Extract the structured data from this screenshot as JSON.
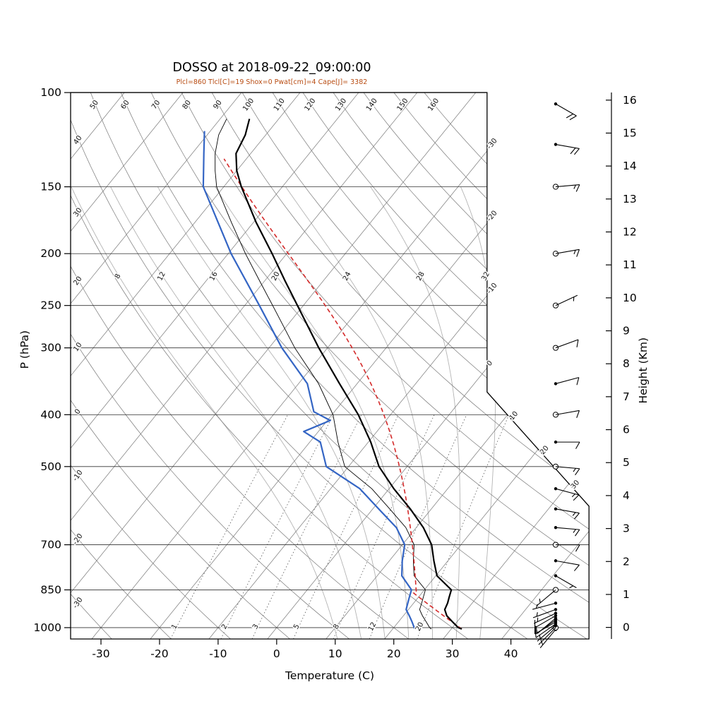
{
  "title": "DOSSO at 2018-09-22_09:00:00",
  "params_line": "Plcl=860 Tlcl[C]=19 Shox=0 Pwat[cm]=4 Cape[J]= 3382",
  "axes": {
    "xlabel": "Temperature (C)",
    "ylabel": "P (hPa)",
    "y2label": "Height (Km)",
    "pressure_ticks": [
      100,
      150,
      200,
      250,
      300,
      400,
      500,
      700,
      850,
      1000
    ],
    "temp_ticks": [
      -30,
      -20,
      -10,
      0,
      10,
      20,
      30,
      40
    ],
    "height_ticks_km": [
      0,
      1,
      2,
      3,
      4,
      5,
      6,
      7,
      8,
      9,
      10,
      11,
      12,
      13,
      14,
      15,
      16
    ]
  },
  "background": {
    "isotherm_start": -110,
    "isotherm_end": 40,
    "isotherm_step": 10,
    "isotherm_labels_right_edge": [
      -30,
      -20,
      -10,
      0
    ],
    "isotherm_labels_bevel": [
      10,
      20,
      30
    ],
    "dry_adiabat_start": -30,
    "dry_adiabat_end": 160,
    "dry_adiabat_step": 10,
    "dry_adiabat_labels_left_edge": [
      -30,
      -20,
      -10,
      0,
      10,
      20,
      30,
      40
    ],
    "dry_adiabat_labels_top_edge": [
      50,
      60,
      70,
      80,
      90,
      100,
      110,
      120,
      130,
      140,
      150,
      160
    ],
    "moist_adiabats": [
      8,
      12,
      16,
      20,
      24,
      28,
      32
    ],
    "mixing_ratio_g_kg": [
      1,
      2,
      3,
      5,
      8,
      12,
      20
    ]
  },
  "chart_data": {
    "type": "skew-t log-p sounding",
    "station": "DOSSO",
    "datetime": "2018-09-22_09:00:00",
    "indices": {
      "Plcl_hPa": 860,
      "Tlcl_C": 19,
      "Shox": 0,
      "Pwat_cm": 4,
      "Cape_J": 3382
    },
    "temperature_profile_p_T": [
      [
        1006,
        31.8
      ],
      [
        1000,
        31.0
      ],
      [
        975,
        29.2
      ],
      [
        950,
        27.4
      ],
      [
        925,
        26.2
      ],
      [
        900,
        25.8
      ],
      [
        875,
        25.2
      ],
      [
        850,
        24.6
      ],
      [
        800,
        20.2
      ],
      [
        750,
        17.6
      ],
      [
        700,
        15.0
      ],
      [
        650,
        11.2
      ],
      [
        600,
        6.4
      ],
      [
        550,
        0.8
      ],
      [
        500,
        -4.8
      ],
      [
        450,
        -9.6
      ],
      [
        400,
        -15.5
      ],
      [
        350,
        -23.0
      ],
      [
        300,
        -31.5
      ],
      [
        250,
        -41.0
      ],
      [
        225,
        -46.5
      ],
      [
        200,
        -52.5
      ],
      [
        175,
        -59.5
      ],
      [
        150,
        -67.0
      ],
      [
        140,
        -70.0
      ],
      [
        130,
        -72.5
      ],
      [
        120,
        -73.5
      ],
      [
        112,
        -75.0
      ]
    ],
    "dewpoint_profile_p_T": [
      [
        1006,
        23.8
      ],
      [
        1000,
        23.5
      ],
      [
        975,
        22.3
      ],
      [
        950,
        21.0
      ],
      [
        925,
        19.6
      ],
      [
        900,
        19.0
      ],
      [
        875,
        18.4
      ],
      [
        850,
        17.8
      ],
      [
        800,
        14.2
      ],
      [
        750,
        12.2
      ],
      [
        700,
        10.4
      ],
      [
        650,
        6.6
      ],
      [
        600,
        1.0
      ],
      [
        550,
        -5.0
      ],
      [
        500,
        -13.8
      ],
      [
        450,
        -18.2
      ],
      [
        430,
        -22.5
      ],
      [
        410,
        -19.5
      ],
      [
        395,
        -23.5
      ],
      [
        350,
        -28.5
      ],
      [
        300,
        -37.8
      ],
      [
        250,
        -47.5
      ],
      [
        200,
        -59.5
      ],
      [
        175,
        -66.0
      ],
      [
        150,
        -73.5
      ],
      [
        130,
        -78.0
      ],
      [
        118,
        -81.0
      ]
    ],
    "parcel": {
      "surface_p": 1006,
      "surface_T": 31.8,
      "surface_Td": 23.8,
      "lcl_p": 860,
      "lcl_T": 19,
      "top_p": 133
    },
    "wind_profile_p_kt_dir": [
      [
        1008,
        3,
        220
      ],
      [
        1000,
        5,
        225
      ],
      [
        992,
        7,
        230
      ],
      [
        984,
        8,
        235
      ],
      [
        976,
        8,
        240
      ],
      [
        968,
        10,
        235
      ],
      [
        960,
        10,
        230
      ],
      [
        950,
        8,
        240
      ],
      [
        940,
        7,
        245
      ],
      [
        925,
        5,
        250
      ],
      [
        900,
        5,
        255
      ],
      [
        850,
        5,
        230
      ],
      [
        800,
        7,
        120
      ],
      [
        750,
        10,
        100
      ],
      [
        700,
        10,
        90
      ],
      [
        650,
        13,
        95
      ],
      [
        600,
        15,
        100
      ],
      [
        550,
        13,
        105
      ],
      [
        500,
        15,
        95
      ],
      [
        450,
        10,
        90
      ],
      [
        400,
        8,
        80
      ],
      [
        350,
        8,
        75
      ],
      [
        300,
        10,
        70
      ],
      [
        250,
        7,
        65
      ],
      [
        200,
        13,
        80
      ],
      [
        150,
        17,
        85
      ],
      [
        125,
        18,
        100
      ],
      [
        105,
        20,
        120
      ]
    ]
  },
  "colors": {
    "temperature": "#000000",
    "dewpoint": "#3465c4",
    "wetbulb": "#000000",
    "parcel": "#d42a2a",
    "subtitle": "#b84c12",
    "background_lines": "#787878",
    "isobar": "#333333",
    "moist_adiabat": "#b4b4b4",
    "mixing_ratio": "#555555",
    "label_text": "#111111"
  }
}
